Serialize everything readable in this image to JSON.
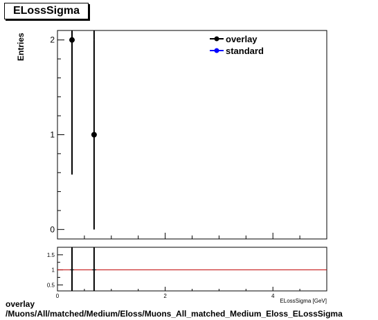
{
  "chart_data": {
    "type": "scatter",
    "title": "ELossSigma",
    "ylabel": "Entries",
    "xlabel": "ELossSigma [GeV]",
    "xlim": [
      0,
      5
    ],
    "ylim": [
      -0.1,
      2.1
    ],
    "y_ticks": [
      "0",
      "1",
      "2"
    ],
    "x_ticks": [
      "0",
      "2",
      "4"
    ],
    "series": [
      {
        "name": "overlay",
        "color": "#000000",
        "marker": "circle",
        "x": [
          0.27,
          0.68
        ],
        "y": [
          2,
          1
        ],
        "yerr_low": [
          1.42,
          1
        ],
        "yerr_high": [
          0,
          1
        ]
      },
      {
        "name": "standard",
        "color": "#0000ff",
        "marker": "circle",
        "x": [],
        "y": []
      }
    ],
    "legend_position": "top-right",
    "ratio_panel": {
      "ylim": [
        0.3,
        1.75
      ],
      "y_ticks": [
        "0.5",
        "1",
        "1.5"
      ],
      "x_ticks": [
        "0",
        "2",
        "4"
      ],
      "reference_line": 1,
      "reference_color": "#c00000",
      "error_bars_x": [
        0.27,
        0.68
      ]
    }
  },
  "caption": {
    "line1": "overlay",
    "line2": "/Muons/All/matched/Medium/Eloss/Muons_All_matched_Medium_Eloss_ELossSigma"
  }
}
